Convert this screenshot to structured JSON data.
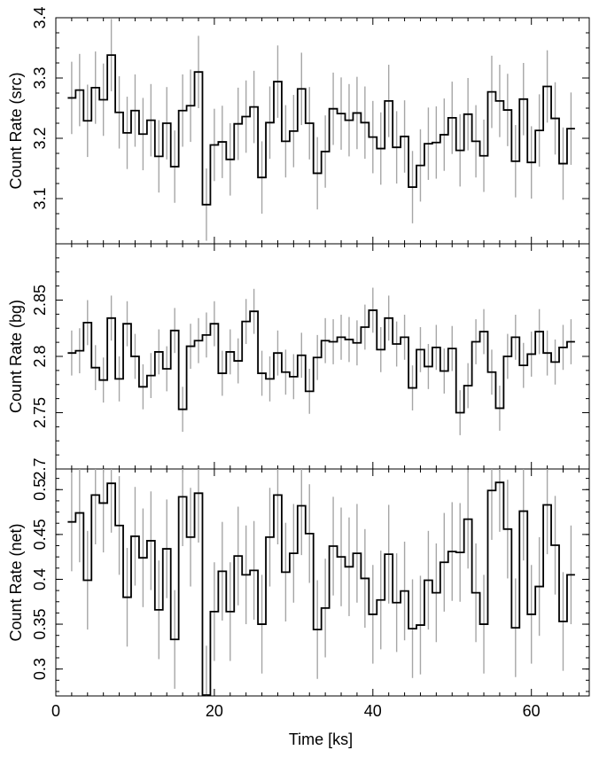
{
  "figure": {
    "xlabel": "Time [ks]",
    "x_ticks": [
      0,
      20,
      40,
      60
    ]
  },
  "chart_data": [
    {
      "type": "line",
      "step": true,
      "ylabel": "Count Rate (src)",
      "xlim": [
        0,
        67.3
      ],
      "ylim": [
        3.025,
        3.4
      ],
      "y_ticks": [
        3.1,
        3.2,
        3.3,
        3.4
      ],
      "y_tick_labels": [
        "3.1",
        "3.2",
        "3.3",
        "3.4"
      ],
      "y_minor_step": 0.025,
      "bin_width_ks": 1.0,
      "colors": {
        "line": "#000000",
        "error_bar": "#a6a6a6"
      },
      "x": [
        2.0,
        3.0,
        4.0,
        5.0,
        6.0,
        7.0,
        8.0,
        9.0,
        10.0,
        11.0,
        12.0,
        13.0,
        14.0,
        15.0,
        16.0,
        17.0,
        18.0,
        19.0,
        20.0,
        21.0,
        22.0,
        23.0,
        24.0,
        25.0,
        26.0,
        27.0,
        28.0,
        29.0,
        30.0,
        31.0,
        32.0,
        33.0,
        34.0,
        35.0,
        36.0,
        37.0,
        38.0,
        39.0,
        40.0,
        41.0,
        42.0,
        43.0,
        44.0,
        45.0,
        46.0,
        47.0,
        48.0,
        49.0,
        50.0,
        51.0,
        52.0,
        53.0,
        54.0,
        55.0,
        56.0,
        57.0,
        58.0,
        59.0,
        60.0,
        61.0,
        62.0,
        63.0,
        64.0,
        65.0
      ],
      "values": [
        3.267,
        3.28,
        3.229,
        3.284,
        3.264,
        3.338,
        3.243,
        3.209,
        3.246,
        3.207,
        3.23,
        3.17,
        3.225,
        3.153,
        3.246,
        3.254,
        3.31,
        3.09,
        3.189,
        3.194,
        3.165,
        3.224,
        3.236,
        3.252,
        3.135,
        3.226,
        3.294,
        3.195,
        3.212,
        3.282,
        3.225,
        3.142,
        3.178,
        3.249,
        3.241,
        3.23,
        3.242,
        3.226,
        3.202,
        3.183,
        3.262,
        3.185,
        3.203,
        3.119,
        3.155,
        3.191,
        3.193,
        3.206,
        3.234,
        3.18,
        3.24,
        3.195,
        3.171,
        3.277,
        3.262,
        3.247,
        3.162,
        3.265,
        3.16,
        3.213,
        3.286,
        3.233,
        3.158,
        3.216
      ],
      "errors": [
        0.06,
        0.06,
        0.06,
        0.06,
        0.06,
        0.06,
        0.06,
        0.06,
        0.06,
        0.06,
        0.06,
        0.06,
        0.06,
        0.06,
        0.06,
        0.06,
        0.06,
        0.06,
        0.06,
        0.06,
        0.06,
        0.06,
        0.06,
        0.06,
        0.06,
        0.06,
        0.06,
        0.06,
        0.06,
        0.06,
        0.06,
        0.06,
        0.06,
        0.06,
        0.06,
        0.06,
        0.06,
        0.06,
        0.06,
        0.06,
        0.06,
        0.06,
        0.06,
        0.06,
        0.06,
        0.06,
        0.06,
        0.06,
        0.06,
        0.06,
        0.06,
        0.06,
        0.06,
        0.06,
        0.06,
        0.06,
        0.06,
        0.06,
        0.06,
        0.06,
        0.06,
        0.06,
        0.06,
        0.06
      ]
    },
    {
      "type": "line",
      "step": true,
      "ylabel": "Count Rate (bg)",
      "xlim": [
        0,
        67.3
      ],
      "ylim": [
        2.7,
        2.9
      ],
      "y_ticks": [
        2.75,
        2.8,
        2.85,
        2.7
      ],
      "y_tick_labels": [
        "2.75",
        "2.8",
        "2.85",
        "2.7"
      ],
      "y_minor_step": 0.0125,
      "bin_width_ks": 1.0,
      "colors": {
        "line": "#000000",
        "error_bar": "#a6a6a6"
      },
      "x": [
        2.0,
        3.0,
        4.0,
        5.0,
        6.0,
        7.0,
        8.0,
        9.0,
        10.0,
        11.0,
        12.0,
        13.0,
        14.0,
        15.0,
        16.0,
        17.0,
        18.0,
        19.0,
        20.0,
        21.0,
        22.0,
        23.0,
        24.0,
        25.0,
        26.0,
        27.0,
        28.0,
        29.0,
        30.0,
        31.0,
        32.0,
        33.0,
        34.0,
        35.0,
        36.0,
        37.0,
        38.0,
        39.0,
        40.0,
        41.0,
        42.0,
        43.0,
        44.0,
        45.0,
        46.0,
        47.0,
        48.0,
        49.0,
        50.0,
        51.0,
        52.0,
        53.0,
        54.0,
        55.0,
        56.0,
        57.0,
        58.0,
        59.0,
        60.0,
        61.0,
        62.0,
        63.0,
        64.0,
        65.0
      ],
      "values": [
        2.803,
        2.805,
        2.83,
        2.79,
        2.779,
        2.834,
        2.78,
        2.829,
        2.8,
        2.773,
        2.783,
        2.804,
        2.789,
        2.823,
        2.753,
        2.809,
        2.814,
        2.819,
        2.829,
        2.785,
        2.804,
        2.796,
        2.831,
        2.84,
        2.785,
        2.78,
        2.803,
        2.786,
        2.782,
        2.801,
        2.769,
        2.799,
        2.814,
        2.813,
        2.817,
        2.815,
        2.812,
        2.826,
        2.841,
        2.806,
        2.834,
        2.811,
        2.817,
        2.772,
        2.806,
        2.791,
        2.808,
        2.787,
        2.807,
        2.75,
        2.774,
        2.813,
        2.822,
        2.786,
        2.754,
        2.8,
        2.817,
        2.792,
        2.802,
        2.822,
        2.803,
        2.795,
        2.808,
        2.813
      ],
      "errors": [
        0.02,
        0.02,
        0.02,
        0.02,
        0.02,
        0.02,
        0.02,
        0.02,
        0.02,
        0.02,
        0.02,
        0.02,
        0.02,
        0.02,
        0.02,
        0.02,
        0.02,
        0.02,
        0.02,
        0.02,
        0.02,
        0.02,
        0.02,
        0.02,
        0.02,
        0.02,
        0.02,
        0.02,
        0.02,
        0.02,
        0.02,
        0.02,
        0.02,
        0.02,
        0.02,
        0.02,
        0.02,
        0.02,
        0.02,
        0.02,
        0.02,
        0.02,
        0.02,
        0.02,
        0.02,
        0.02,
        0.02,
        0.02,
        0.02,
        0.02,
        0.02,
        0.02,
        0.02,
        0.02,
        0.02,
        0.02,
        0.02,
        0.02,
        0.02,
        0.02,
        0.02,
        0.02,
        0.02,
        0.02
      ]
    },
    {
      "type": "line",
      "step": true,
      "ylabel": "Count Rate (net)",
      "xlim": [
        0,
        67.3
      ],
      "ylim": [
        0.27,
        0.523
      ],
      "y_ticks": [
        0.3,
        0.35,
        0.4,
        0.45,
        0.5
      ],
      "y_tick_labels": [
        "0.3",
        "0.35",
        "0.4",
        "0.45",
        "0.5"
      ],
      "y_minor_step": 0.0125,
      "bin_width_ks": 1.0,
      "colors": {
        "line": "#000000",
        "error_bar": "#a6a6a6"
      },
      "x": [
        2.0,
        3.0,
        4.0,
        5.0,
        6.0,
        7.0,
        8.0,
        9.0,
        10.0,
        11.0,
        12.0,
        13.0,
        14.0,
        15.0,
        16.0,
        17.0,
        18.0,
        19.0,
        20.0,
        21.0,
        22.0,
        23.0,
        24.0,
        25.0,
        26.0,
        27.0,
        28.0,
        29.0,
        30.0,
        31.0,
        32.0,
        33.0,
        34.0,
        35.0,
        36.0,
        37.0,
        38.0,
        39.0,
        40.0,
        41.0,
        42.0,
        43.0,
        44.0,
        45.0,
        46.0,
        47.0,
        48.0,
        49.0,
        50.0,
        51.0,
        52.0,
        53.0,
        54.0,
        55.0,
        56.0,
        57.0,
        58.0,
        59.0,
        60.0,
        61.0,
        62.0,
        63.0,
        64.0,
        65.0
      ],
      "values": [
        0.464,
        0.474,
        0.399,
        0.494,
        0.485,
        0.507,
        0.46,
        0.38,
        0.448,
        0.424,
        0.443,
        0.366,
        0.434,
        0.333,
        0.492,
        0.447,
        0.496,
        0.271,
        0.364,
        0.409,
        0.364,
        0.426,
        0.405,
        0.41,
        0.35,
        0.447,
        0.494,
        0.408,
        0.429,
        0.482,
        0.451,
        0.344,
        0.368,
        0.437,
        0.425,
        0.414,
        0.429,
        0.401,
        0.361,
        0.377,
        0.428,
        0.374,
        0.387,
        0.345,
        0.349,
        0.399,
        0.385,
        0.419,
        0.431,
        0.43,
        0.467,
        0.385,
        0.35,
        0.499,
        0.508,
        0.456,
        0.346,
        0.476,
        0.361,
        0.392,
        0.483,
        0.438,
        0.353,
        0.405
      ],
      "errors": [
        0.055,
        0.055,
        0.055,
        0.055,
        0.055,
        0.055,
        0.055,
        0.055,
        0.055,
        0.055,
        0.055,
        0.055,
        0.055,
        0.055,
        0.055,
        0.055,
        0.055,
        0.055,
        0.055,
        0.055,
        0.055,
        0.055,
        0.055,
        0.055,
        0.055,
        0.055,
        0.055,
        0.055,
        0.055,
        0.055,
        0.055,
        0.055,
        0.055,
        0.055,
        0.055,
        0.055,
        0.055,
        0.055,
        0.055,
        0.055,
        0.055,
        0.055,
        0.055,
        0.055,
        0.055,
        0.055,
        0.055,
        0.055,
        0.055,
        0.055,
        0.055,
        0.055,
        0.055,
        0.055,
        0.055,
        0.055,
        0.055,
        0.055,
        0.055,
        0.055,
        0.055,
        0.055,
        0.055,
        0.055
      ]
    }
  ]
}
